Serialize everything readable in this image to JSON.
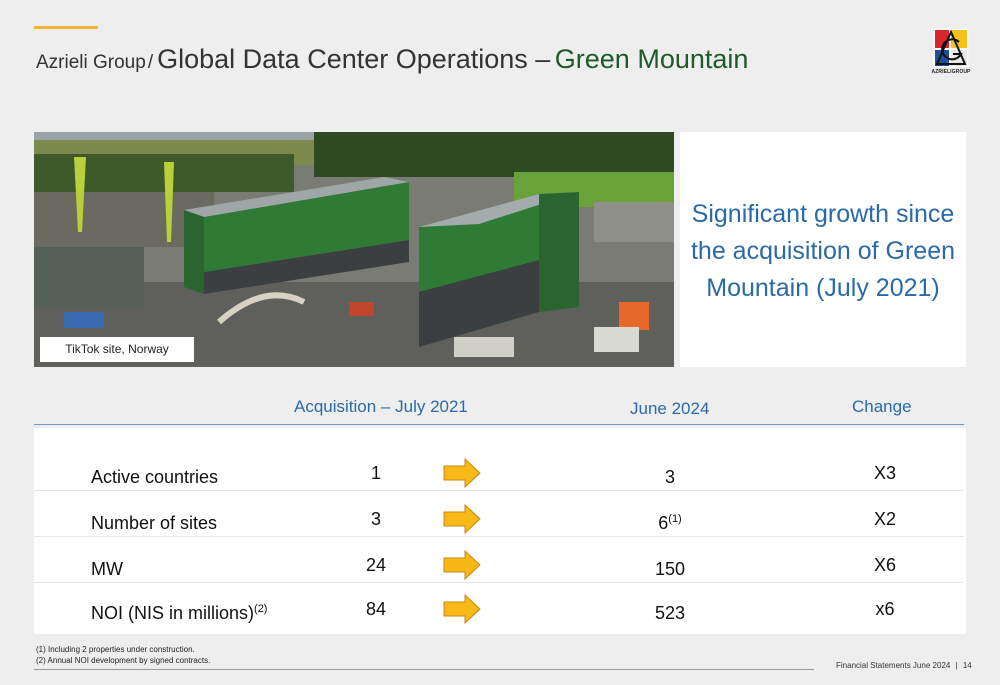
{
  "header": {
    "prefix": "Azrieli Group",
    "separator": "/",
    "title_main": "Global Data Center Operations –",
    "title_highlight": "Green Mountain",
    "logo_text": "AZRIELIGROUP",
    "logo_icon": "azrieli-logo-icon"
  },
  "colors": {
    "accent": "#f2b632",
    "highlight_green": "#1f5a2a",
    "blue": "#2a6aa8",
    "arrow_yellow": "#f7b818"
  },
  "photo": {
    "caption": "TikTok site, Norway"
  },
  "growth_box": {
    "lines": [
      "Significant growth since",
      "the acquisition of Green",
      "Mountain (July 2021)"
    ]
  },
  "table": {
    "headers": {
      "acquisition": "Acquisition – July 2021",
      "current": "June 2024",
      "change": "Change"
    },
    "rows": [
      {
        "label": "Active countries",
        "label_sup": "",
        "acquisition": "1",
        "current": "3",
        "current_sup": "",
        "change": "X3"
      },
      {
        "label": "Number of sites",
        "label_sup": "",
        "acquisition": "3",
        "current": "6",
        "current_sup": "(1)",
        "change": "X2"
      },
      {
        "label": "MW",
        "label_sup": "",
        "acquisition": "24",
        "current": "150",
        "current_sup": "",
        "change": "X6"
      },
      {
        "label": "NOI (NIS in millions)",
        "label_sup": "(2)",
        "acquisition": "84",
        "current": "523",
        "current_sup": "",
        "change": "x6"
      }
    ],
    "arrow_icon": "right-arrow-icon"
  },
  "footnotes": [
    "(1) Including 2 properties under construction.",
    "(2) Annual NOI development by signed contracts."
  ],
  "footer": {
    "text": "Financial Statements June 2024",
    "divider": "|",
    "page": "14"
  }
}
